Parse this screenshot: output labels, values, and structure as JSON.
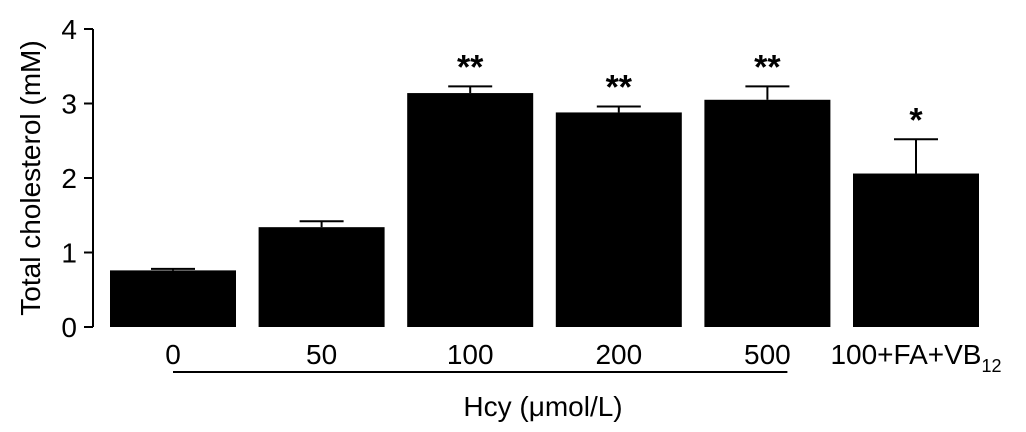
{
  "chart_data": {
    "type": "bar",
    "title": "",
    "xlabel": "Hcy (μmol/L)",
    "ylabel": "Total cholesterol (mM)",
    "ylim": [
      0,
      4
    ],
    "yticks": [
      "0",
      "1",
      "2",
      "3",
      "4"
    ],
    "grid": false,
    "categories": [
      {
        "label": "0",
        "sub": ""
      },
      {
        "label": "50",
        "sub": ""
      },
      {
        "label": "100",
        "sub": ""
      },
      {
        "label": "200",
        "sub": ""
      },
      {
        "label": "500",
        "sub": ""
      },
      {
        "label": "100+FA+VB",
        "sub": "12"
      }
    ],
    "values": [
      0.76,
      1.34,
      3.14,
      2.88,
      3.05,
      2.06
    ],
    "errors": [
      0.02,
      0.08,
      0.09,
      0.08,
      0.18,
      0.46
    ],
    "significance": [
      "",
      "",
      "**",
      "**",
      "**",
      "*"
    ],
    "bar_color": "#000000",
    "bracket_categories": [
      "0",
      "500"
    ]
  }
}
